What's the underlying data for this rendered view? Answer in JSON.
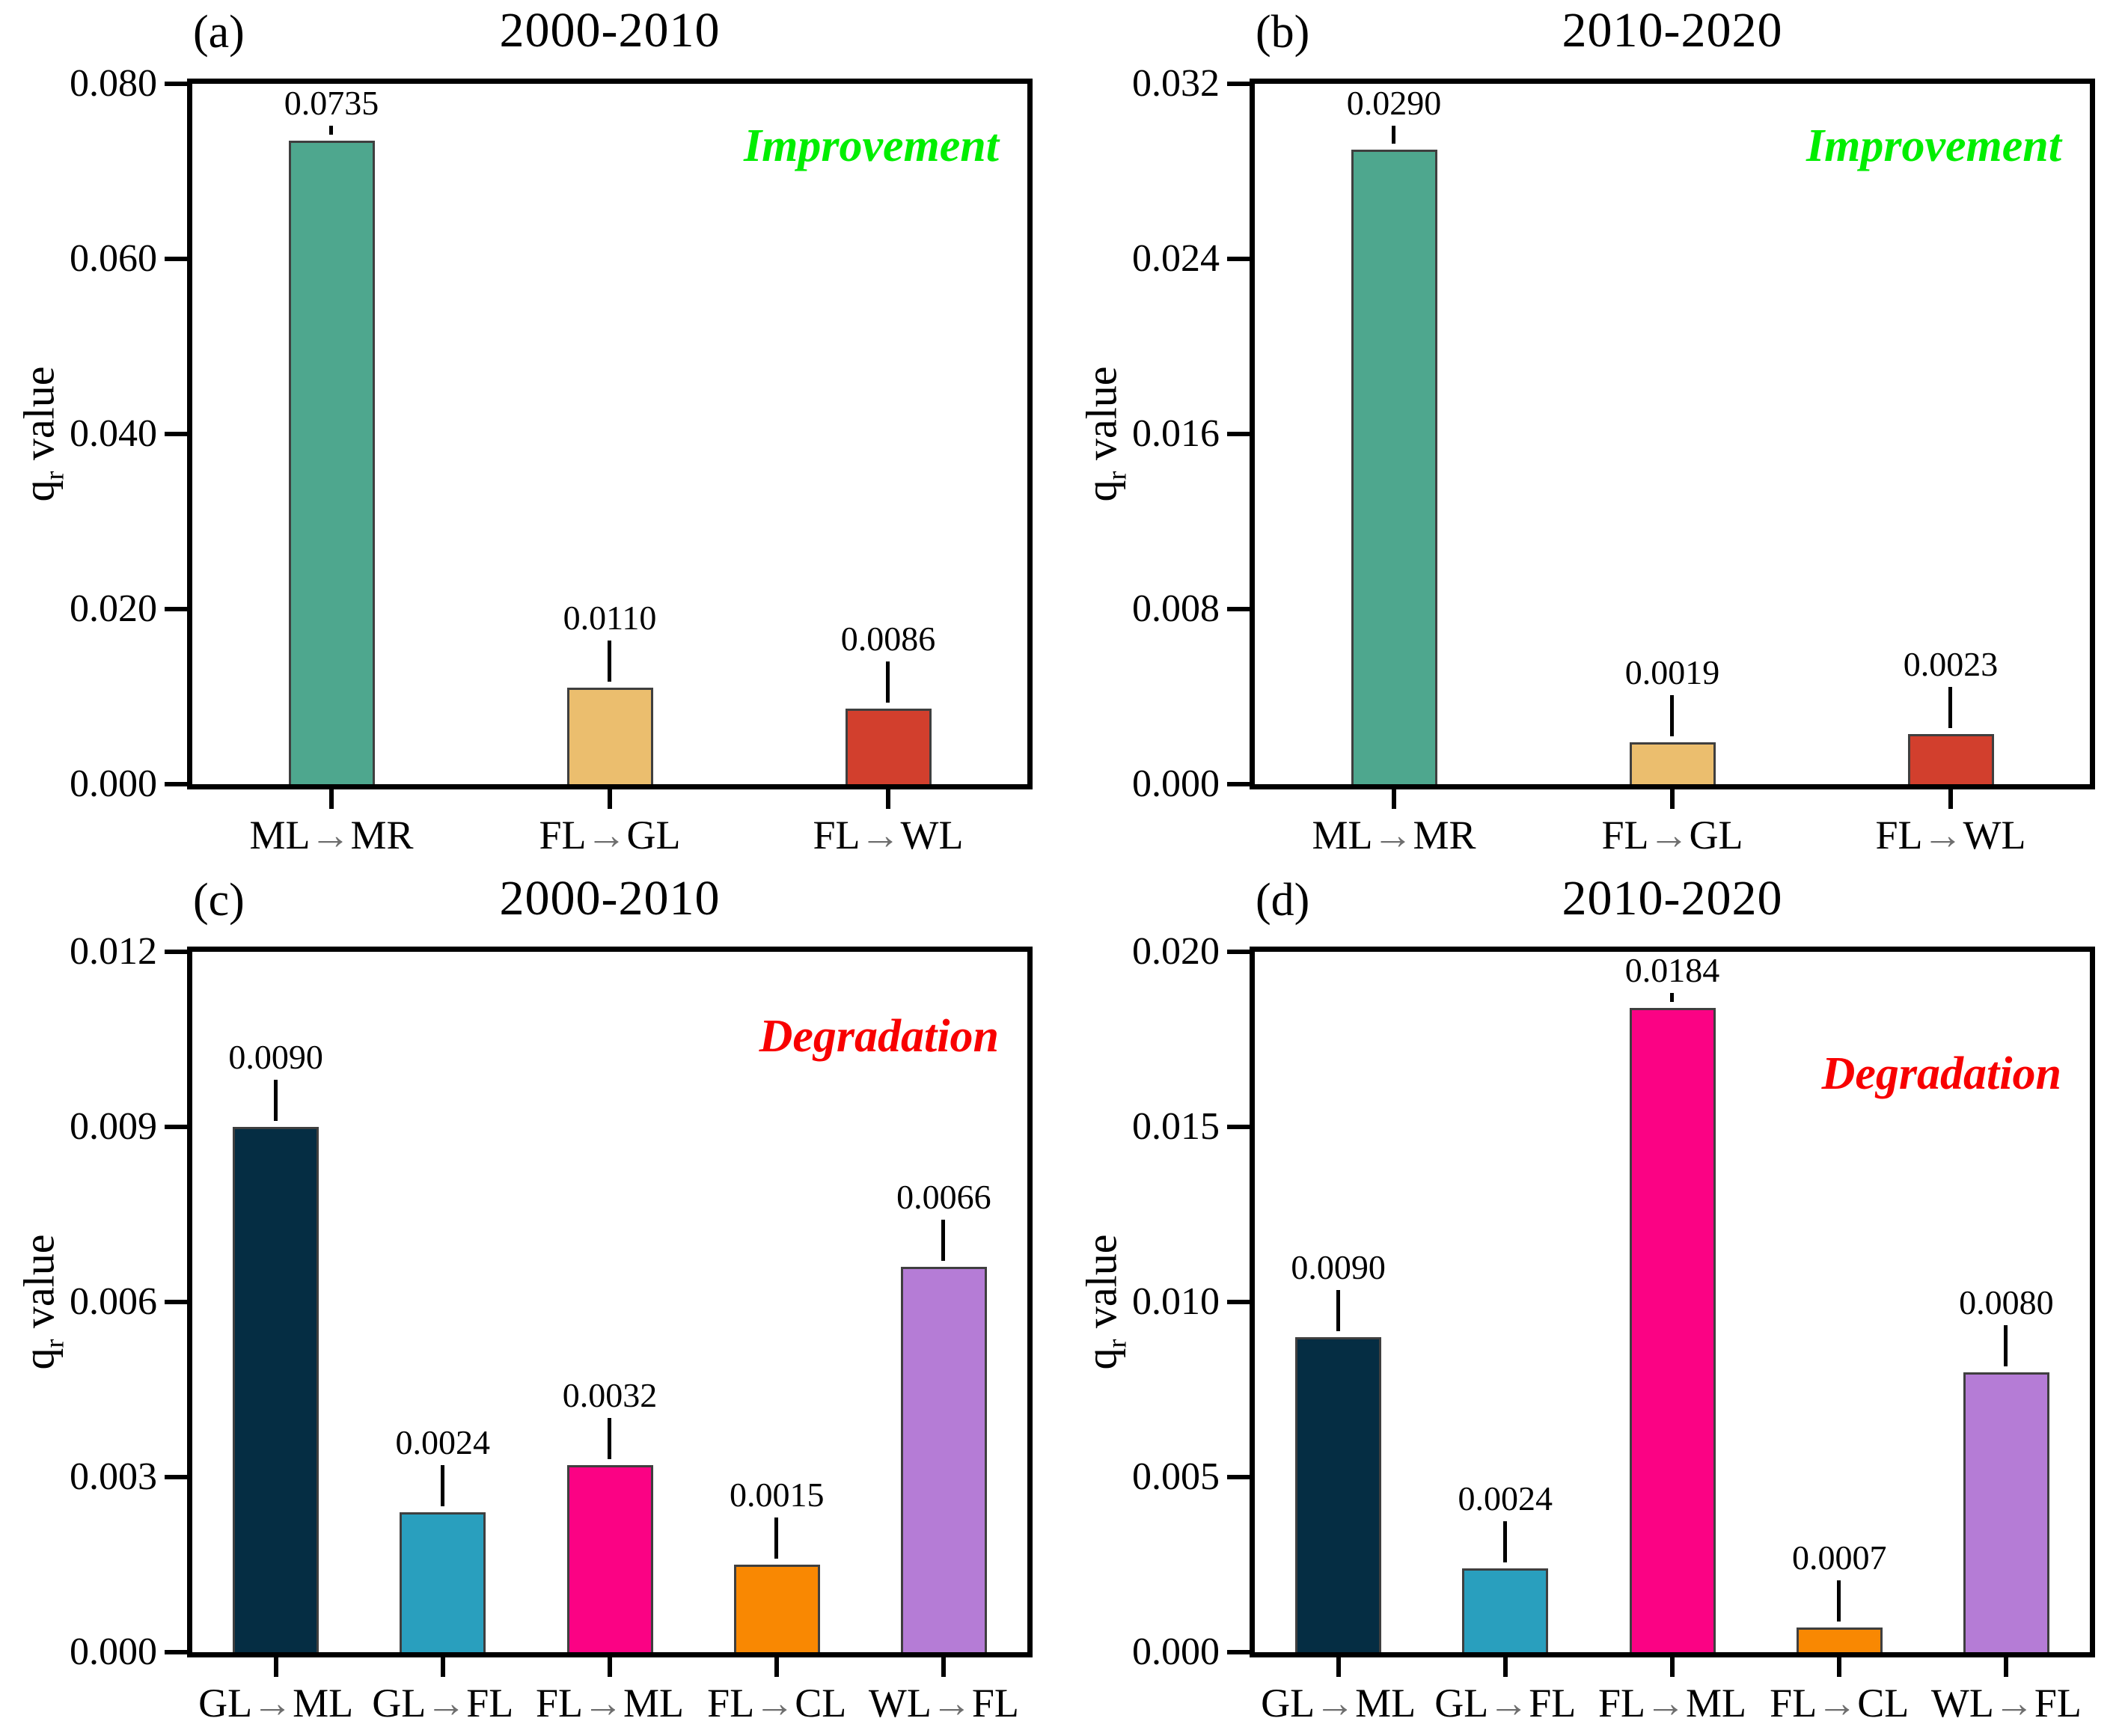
{
  "figure": {
    "background": "#FFFFFF"
  },
  "styles": {
    "axis_color": "#000000",
    "bar_edge_color": "#3F3F3F",
    "arrow_color": "#6E6E6E",
    "improvement_color": "#00EE00",
    "degradation_color": "#F80000"
  },
  "chart_data": [
    {
      "type": "bar",
      "panel_letter": "(a)",
      "title": "2000-2010",
      "annotation": "Improvement",
      "annotation_color": "#00EE00",
      "ylabel": "qr value",
      "ylabel_q": "q",
      "ylabel_sub": "r",
      "ylabel_rest": " value",
      "ylim": [
        0,
        0.08
      ],
      "yticks": [
        "0.080",
        "0.060",
        "0.040",
        "0.020",
        "0.000"
      ],
      "categories": [
        "ML→MR",
        "FL→GL",
        "FL→WL"
      ],
      "values": [
        0.0735,
        0.011,
        0.0086
      ],
      "bar_labels": [
        "0.0735",
        "0.0110",
        "0.0086"
      ],
      "bar_colors": [
        "#4EA78E",
        "#EBBE6E",
        "#D23F2D"
      ],
      "legend": "none",
      "grid": "off"
    },
    {
      "type": "bar",
      "panel_letter": "(b)",
      "title": "2010-2020",
      "annotation": "Improvement",
      "annotation_color": "#00EE00",
      "ylabel": "qr value",
      "ylabel_q": "q",
      "ylabel_sub": "r",
      "ylabel_rest": " value",
      "ylim": [
        0,
        0.032
      ],
      "yticks": [
        "0.032",
        "0.024",
        "0.016",
        "0.008",
        "0.000"
      ],
      "categories": [
        "ML→MR",
        "FL→GL",
        "FL→WL"
      ],
      "values": [
        0.029,
        0.0019,
        0.0023
      ],
      "bar_labels": [
        "0.0290",
        "0.0019",
        "0.0023"
      ],
      "bar_colors": [
        "#4EA78E",
        "#EBBE6E",
        "#D23F2D"
      ],
      "legend": "none",
      "grid": "off"
    },
    {
      "type": "bar",
      "panel_letter": "(c)",
      "title": "2000-2010",
      "annotation": "Degradation",
      "annotation_color": "#F80000",
      "ylabel": "qr value",
      "ylabel_q": "q",
      "ylabel_sub": "r",
      "ylabel_rest": " value",
      "ylim": [
        0,
        0.012
      ],
      "yticks": [
        "0.012",
        "0.009",
        "0.006",
        "0.003",
        "0.000"
      ],
      "categories": [
        "GL→ML",
        "GL→FL",
        "FL→ML",
        "FL→CL",
        "WL→FL"
      ],
      "values": [
        0.009,
        0.0024,
        0.0032,
        0.0015,
        0.0066
      ],
      "bar_labels": [
        "0.0090",
        "0.0024",
        "0.0032",
        "0.0015",
        "0.0066"
      ],
      "bar_colors": [
        "#052D43",
        "#299FBE",
        "#FB0284",
        "#F98802",
        "#B57CD6"
      ],
      "legend": "none",
      "grid": "off"
    },
    {
      "type": "bar",
      "panel_letter": "(d)",
      "title": "2010-2020",
      "annotation": "Degradation",
      "annotation_color": "#F80000",
      "ylabel": "qr value",
      "ylabel_q": "q",
      "ylabel_sub": "r",
      "ylabel_rest": " value",
      "ylim": [
        0,
        0.02
      ],
      "yticks": [
        "0.020",
        "0.015",
        "0.010",
        "0.005",
        "0.000"
      ],
      "categories": [
        "GL→ML",
        "GL→FL",
        "FL→ML",
        "FL→CL",
        "WL→FL"
      ],
      "values": [
        0.009,
        0.0024,
        0.0184,
        0.0007,
        0.008
      ],
      "bar_labels": [
        "0.0090",
        "0.0024",
        "0.0184",
        "0.0007",
        "0.0080"
      ],
      "bar_colors": [
        "#052D43",
        "#299FBE",
        "#FB0284",
        "#F98802",
        "#B57CD6"
      ],
      "legend": "none",
      "grid": "off"
    }
  ]
}
